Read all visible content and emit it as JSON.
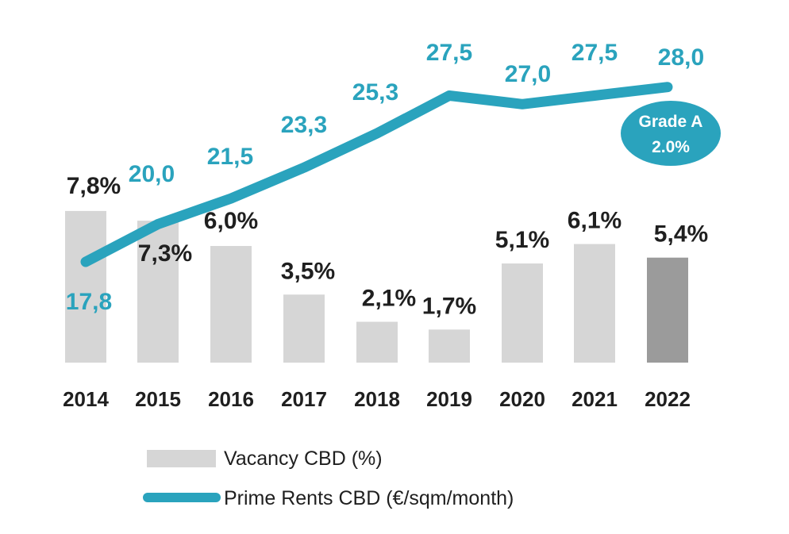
{
  "chart_data": {
    "type": "bar",
    "title": "",
    "categories": [
      "2014",
      "2015",
      "2016",
      "2017",
      "2018",
      "2019",
      "2020",
      "2021",
      "2022"
    ],
    "series": [
      {
        "name": "Vacancy CBD (%)",
        "kind": "bar",
        "values": [
          7.8,
          7.3,
          6.0,
          3.5,
          2.1,
          1.7,
          5.1,
          6.1,
          5.4
        ],
        "labels": [
          "7,8%",
          "7,3%",
          "6,0%",
          "3,5%",
          "2,1%",
          "1,7%",
          "5,1%",
          "6,1%",
          "5,4%"
        ],
        "color": "#d6d6d6",
        "highlight_color": "#9b9b9b",
        "highlight_index": 8
      },
      {
        "name": "Prime Rents CBD (€/sqm/month)",
        "kind": "line",
        "values": [
          17.8,
          20.0,
          21.5,
          23.3,
          25.3,
          27.5,
          27.0,
          27.5,
          28.0
        ],
        "labels": [
          "17,8",
          "20,0",
          "21,5",
          "23,3",
          "25,3",
          "27,5",
          "27,0",
          "27,5",
          "28,0"
        ],
        "color": "#2aa3bd"
      }
    ],
    "bar_ylim": [
      0,
      10
    ],
    "line_ylim": [
      12,
      30
    ],
    "annotation": {
      "line1": "Grade A",
      "line2": "2.0%"
    },
    "legend": {
      "position": "bottom",
      "items": [
        "Vacancy CBD (%)",
        "Prime Rents CBD (€/sqm/month)"
      ]
    },
    "colors": {
      "vacancy_text": "#1f1f1f",
      "rent_text": "#2aa3bd",
      "axis_text": "#1f1f1f"
    }
  }
}
